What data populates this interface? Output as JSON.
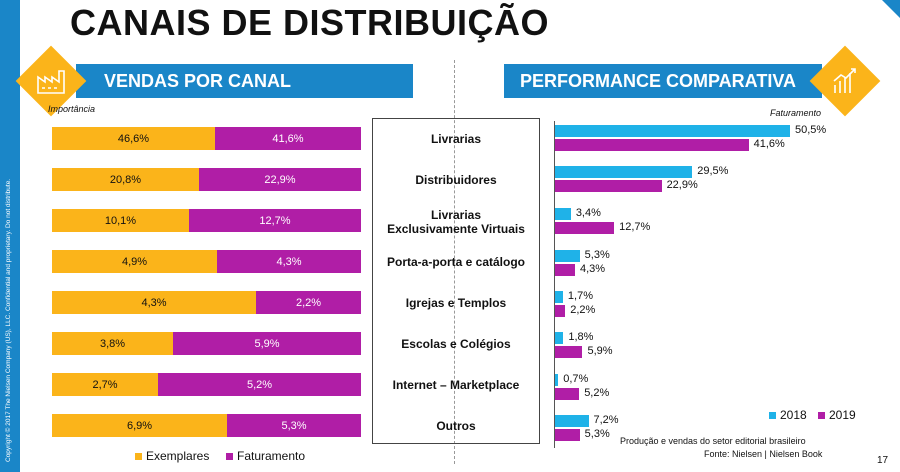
{
  "title": "CANAIS DE DISTRIBUIÇÃO",
  "side_copyright": "Copyright © 2017 The Nielsen Company (US), LLC. Confidential and proprietary. Do not distribute.",
  "left_banner": "VENDAS POR CANAL",
  "right_banner": "PERFORMANCE COMPARATIVA",
  "importancia_label": "Importância",
  "faturamento_label": "Faturamento",
  "legend_left": [
    "Exemplares",
    "Faturamento"
  ],
  "legend_right": [
    "2018",
    "2019"
  ],
  "source_line1": "Produção e vendas do setor editorial brasileiro",
  "source_line2": "Fonte: Nielsen | Nielsen Book",
  "page_number": "17",
  "colors": {
    "blue": "#1a86c8",
    "cyan": "#1fb2e8",
    "orange": "#fbb41a",
    "purple": "#b01ea6"
  },
  "icons": {
    "left_banner_icon": "factory-icon",
    "right_banner_icon": "growth-chart-icon"
  },
  "chart_data": [
    {
      "type": "bar",
      "stacked": true,
      "orientation": "horizontal",
      "normalized": true,
      "categories": [
        "Livrarias",
        "Distribuidores",
        "Livrarias Exclusivamente Virtuais",
        "Porta-a-porta e catálogo",
        "Igrejas e Templos",
        "Escolas e Colégios",
        "Internet – Marketplace",
        "Outros"
      ],
      "ylabel": "Importância",
      "series": [
        {
          "name": "Exemplares",
          "values": [
            46.6,
            20.8,
            10.1,
            4.9,
            4.3,
            3.8,
            2.7,
            6.9
          ],
          "labels": [
            "46,6%",
            "20,8%",
            "10,1%",
            "4,9%",
            "4,3%",
            "3,8%",
            "2,7%",
            "6,9%"
          ]
        },
        {
          "name": "Faturamento",
          "values": [
            41.6,
            22.9,
            12.7,
            4.3,
            2.2,
            5.9,
            5.2,
            5.3
          ],
          "labels": [
            "41,6%",
            "22,9%",
            "12,7%",
            "4,3%",
            "2,2%",
            "5,9%",
            "5,2%",
            "5,3%"
          ]
        }
      ],
      "legend": "bottom"
    },
    {
      "type": "bar",
      "orientation": "horizontal",
      "categories": [
        "Livrarias",
        "Distribuidores",
        "Livrarias Exclusivamente Virtuais",
        "Porta-a-porta e catálogo",
        "Igrejas e Templos",
        "Escolas e Colégios",
        "Internet – Marketplace",
        "Outros"
      ],
      "title": "Faturamento",
      "series": [
        {
          "name": "2018",
          "values": [
            50.5,
            29.5,
            3.4,
            5.3,
            1.7,
            1.8,
            0.7,
            7.2
          ],
          "labels": [
            "50,5%",
            "29,5%",
            "3,4%",
            "5,3%",
            "1,7%",
            "1,8%",
            "0,7%",
            "7,2%"
          ]
        },
        {
          "name": "2019",
          "values": [
            41.6,
            22.9,
            12.7,
            4.3,
            2.2,
            5.9,
            5.2,
            5.3
          ],
          "labels": [
            "41,6%",
            "22,9%",
            "12,7%",
            "4,3%",
            "2,2%",
            "5,9%",
            "5,2%",
            "5,3%"
          ]
        }
      ],
      "legend": "bottom-right"
    }
  ]
}
